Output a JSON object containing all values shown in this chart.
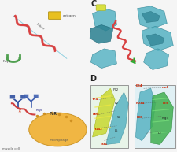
{
  "fig_width": 2.26,
  "fig_height": 1.9,
  "dpi": 100,
  "background_color": "#f5f5f5",
  "panel_A": {
    "bg": "#f0eeec",
    "helix_color": "#d94040",
    "linker_color": "#80c0d0",
    "antigen_color": "#e8c020",
    "fcrII_color": "#50a050",
    "text_color": "#444444"
  },
  "panel_B": {
    "bg": "#ece8f0",
    "antibody_color": "#4060a0",
    "helix_color": "#d04040",
    "cell_color": "#f0b840",
    "receptor_color": "#6080b0"
  },
  "panel_C": {
    "bg": "#ffffff",
    "teal": "#5ab5c5",
    "teal_dark": "#2a8090",
    "helix_red": "#d94040",
    "yellow_green": "#c8d840",
    "green": "#40a840",
    "label": "C"
  },
  "panel_D": {
    "bg": "#ffffff",
    "label": "D",
    "box1_bg": "#e8f4e8",
    "box2_bg": "#e0f0f4",
    "yellow_green": "#c8d030",
    "teal": "#50b0c0",
    "green": "#40b050",
    "red_label": "#cc2200",
    "black_label": "#222222"
  }
}
